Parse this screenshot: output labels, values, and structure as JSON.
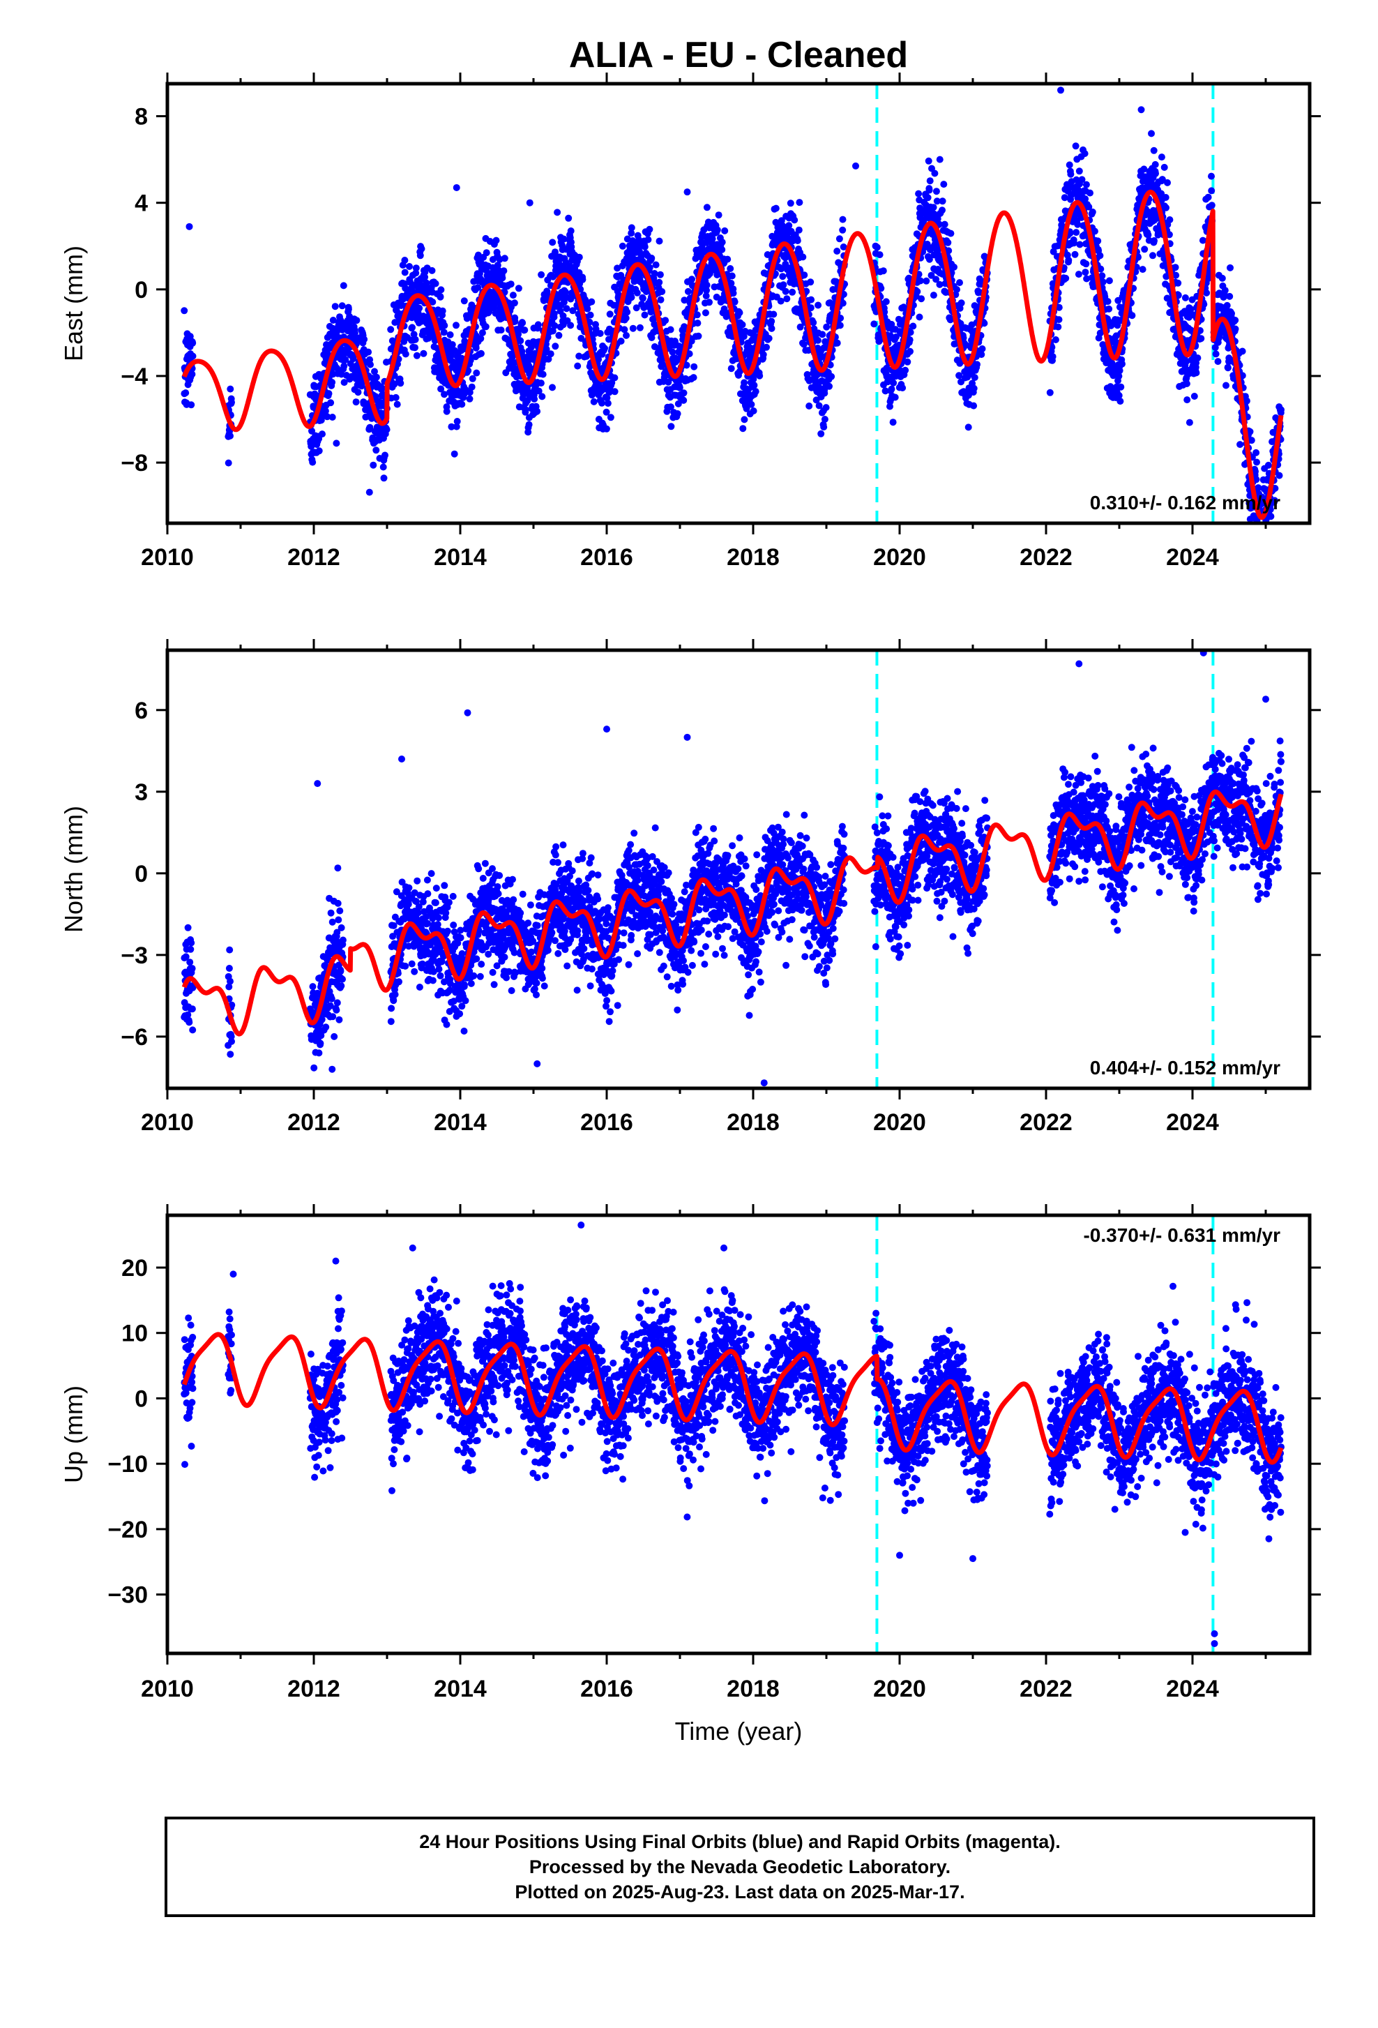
{
  "title": "ALIA  - EU - Cleaned",
  "x_axis": {
    "label": "Time (year)",
    "range": [
      2010,
      2025.6
    ],
    "ticks": [
      2010,
      2012,
      2014,
      2016,
      2018,
      2020,
      2022,
      2024
    ]
  },
  "footer": {
    "line1": "24 Hour Positions Using Final Orbits (blue) and Rapid Orbits (magenta).",
    "line2": "Processed by the Nevada Geodetic Laboratory.",
    "line3": "Plotted on 2025-Aug-23. Last data on 2025-Mar-17."
  },
  "colors": {
    "points": "#0000ff",
    "model": "#ff0000",
    "event_lines": "#00ffff",
    "frame": "#000000"
  },
  "chart_data": [
    {
      "type": "scatter",
      "panel": "east",
      "ylabel": "East (mm)",
      "ylim": [
        -10.8,
        9.5
      ],
      "yticks": [
        8,
        4,
        0,
        -4,
        -8
      ],
      "rate_text": "0.310+/- 0.162 mm/yr",
      "rate_position": "bottom-right",
      "event_lines": [
        2019.69,
        2024.28
      ],
      "data_segments": [
        [
          2010.23,
          2010.35
        ],
        [
          2010.83,
          2010.88
        ],
        [
          2011.95,
          2013.0
        ],
        [
          2013.05,
          2019.25
        ],
        [
          2019.65,
          2021.2
        ],
        [
          2022.05,
          2024.27
        ],
        [
          2024.29,
          2025.21
        ]
      ],
      "model": {
        "base": -0.9,
        "rate": 0.31,
        "t0": 2017.5,
        "annual_amp": 2.8,
        "annual_peak": 0.43,
        "semiannual_amp": 0.25,
        "semiannual_peak": 0.2,
        "amp_growth": 0.06,
        "offsets": [
          {
            "epoch": 2024.28,
            "value": -6.0
          }
        ],
        "post_offset_trend": [
          {
            "from": 2024.28,
            "rate": -2.5
          }
        ],
        "start_adjust": [
          {
            "until": 2013.0,
            "value": -1.6
          }
        ]
      },
      "noise_sd": 1.1,
      "outliers": [
        [
          2019.4,
          5.7
        ],
        [
          2020.55,
          6.0
        ],
        [
          2022.2,
          9.2
        ],
        [
          2023.3,
          8.3
        ],
        [
          2014.95,
          4.0
        ],
        [
          2013.95,
          4.7
        ],
        [
          2017.1,
          4.5
        ],
        [
          2010.3,
          2.9
        ]
      ]
    },
    {
      "type": "scatter",
      "panel": "north",
      "ylabel": "North (mm)",
      "ylim": [
        -7.9,
        8.2
      ],
      "yticks": [
        6,
        3,
        0,
        -3,
        -6
      ],
      "rate_text": "0.404+/- 0.152 mm/yr",
      "rate_position": "bottom-right",
      "event_lines": [
        2019.69,
        2024.28
      ],
      "data_segments": [
        [
          2010.23,
          2010.35
        ],
        [
          2010.83,
          2010.88
        ],
        [
          2011.95,
          2012.4
        ],
        [
          2013.05,
          2019.25
        ],
        [
          2019.65,
          2021.2
        ],
        [
          2022.05,
          2025.21
        ]
      ],
      "model": {
        "base": -1.1,
        "rate": 0.404,
        "t0": 2017.5,
        "annual_amp": 0.9,
        "annual_peak": 0.45,
        "semiannual_amp": 0.5,
        "semiannual_peak": 0.25,
        "amp_growth": 0.0,
        "offsets": [],
        "post_offset_trend": [],
        "start_adjust": [
          {
            "until": 2012.5,
            "value": -0.8
          },
          {
            "from": 2019.7,
            "until": 2025.3,
            "value": 0.4
          }
        ]
      },
      "noise_sd": 0.9,
      "outliers": [
        [
          2014.1,
          5.9
        ],
        [
          2016.0,
          5.3
        ],
        [
          2012.05,
          3.3
        ],
        [
          2022.45,
          7.7
        ],
        [
          2024.15,
          8.1
        ],
        [
          2025.0,
          6.4
        ],
        [
          2018.15,
          -7.7
        ],
        [
          2015.05,
          -7.0
        ],
        [
          2012.25,
          -7.2
        ],
        [
          2013.2,
          4.2
        ],
        [
          2017.1,
          5.0
        ]
      ]
    },
    {
      "type": "scatter",
      "panel": "up",
      "ylabel": "Up (mm)",
      "ylim": [
        -39,
        28
      ],
      "yticks": [
        20,
        10,
        0,
        -10,
        -20,
        -30
      ],
      "rate_text": "-0.370+/- 0.631 mm/yr",
      "rate_position": "top-right",
      "event_lines": [
        2019.69,
        2024.28
      ],
      "data_segments": [
        [
          2010.23,
          2010.35
        ],
        [
          2010.83,
          2010.88
        ],
        [
          2011.95,
          2012.4
        ],
        [
          2013.05,
          2019.25
        ],
        [
          2019.65,
          2021.2
        ],
        [
          2022.05,
          2025.21
        ]
      ],
      "model": {
        "base": 2.5,
        "rate": -0.37,
        "t0": 2017.5,
        "annual_amp": 5.0,
        "annual_peak": 0.62,
        "semiannual_amp": 1.2,
        "semiannual_peak": 0.3,
        "amp_growth": 0.0,
        "offsets": [
          {
            "epoch": 2019.69,
            "value": -3.5
          }
        ],
        "post_offset_trend": [],
        "start_adjust": []
      },
      "noise_sd": 4.2,
      "outliers": [
        [
          2015.65,
          26.5
        ],
        [
          2013.35,
          23.0
        ],
        [
          2017.6,
          23.0
        ],
        [
          2012.3,
          21.0
        ],
        [
          2024.3,
          -37.5
        ],
        [
          2024.3,
          -36.0
        ],
        [
          2021.0,
          -24.5
        ],
        [
          2020.0,
          -24.0
        ],
        [
          2023.9,
          -20.5
        ],
        [
          2010.9,
          19.0
        ]
      ]
    }
  ]
}
